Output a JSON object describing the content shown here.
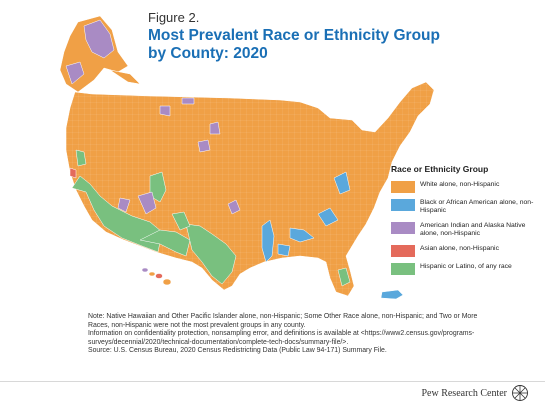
{
  "header": {
    "figure_label": "Figure 2.",
    "title": "Most Prevalent Race or Ethnicity Group by County: 2020"
  },
  "colors": {
    "title": "#1a6fb5",
    "white": "#f0a046",
    "black": "#5aa8dc",
    "native": "#a98bc4",
    "asian": "#e46a5b",
    "hispanic": "#79c07f",
    "border": "#ffffff"
  },
  "legend": {
    "title": "Race or Ethnicity Group",
    "items": [
      {
        "label": "White alone, non-Hispanic",
        "color": "#f0a046"
      },
      {
        "label": "Black or African American alone, non-Hispanic",
        "color": "#5aa8dc"
      },
      {
        "label": "American Indian and Alaska Native alone, non-Hispanic",
        "color": "#a98bc4"
      },
      {
        "label": "Asian alone, non-Hispanic",
        "color": "#e46a5b"
      },
      {
        "label": "Hispanic or Latino, of any race",
        "color": "#79c07f"
      }
    ]
  },
  "notes": {
    "note": "Note: Native Hawaiian and Other Pacific Islander alone, non-Hispanic; Some Other Race alone, non-Hispanic; and Two or More Races, non-Hispanic were not the most prevalent groups in any county.",
    "info": "Information on confidentiality protection, nonsampling error, and definitions is available at <https://www2.census.gov/programs-surveys/decennial/2020/technical-documentation/complete-tech-docs/summary-file/>.",
    "source": "Source: U.S. Census Bureau, 2020 Census Redistricting Data (Public Law 94-171) Summary File."
  },
  "footer": {
    "brand": "Pew Research Center"
  }
}
